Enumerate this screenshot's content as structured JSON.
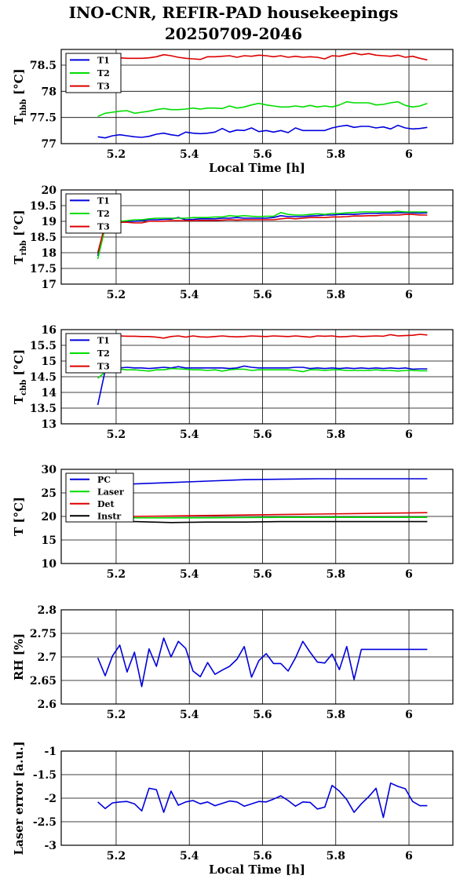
{
  "title_line1": "INO-CNR, REFIR-PAD housekeepings",
  "title_line2": "20250709-2046",
  "colors": {
    "blue": "#0000dd",
    "green": "#00dd00",
    "red": "#dd0000",
    "black": "#000000"
  },
  "chart_data": [
    {
      "type": "line",
      "ylabel": {
        "main": "T",
        "sub": "hbb",
        "unit": " [°C]"
      },
      "xlabel": "Local Time [h]",
      "xlim": [
        5.05,
        6.12
      ],
      "ylim": [
        77,
        78.8
      ],
      "yticks": [
        77,
        77.5,
        78,
        78.5
      ],
      "ytick_labels": [
        "77",
        "77.5",
        "78",
        "78.5"
      ],
      "xticks": [
        5.2,
        5.4,
        5.6,
        5.8,
        6
      ],
      "xtick_labels": [
        "5.2",
        "5.4",
        "5.6",
        "5.8",
        "6"
      ],
      "grid": true,
      "legend": "top-left",
      "x": [
        5.15,
        5.17,
        5.19,
        5.21,
        5.23,
        5.25,
        5.27,
        5.29,
        5.31,
        5.33,
        5.35,
        5.37,
        5.39,
        5.41,
        5.43,
        5.45,
        5.47,
        5.49,
        5.51,
        5.53,
        5.55,
        5.57,
        5.59,
        5.61,
        5.63,
        5.65,
        5.67,
        5.69,
        5.71,
        5.73,
        5.75,
        5.77,
        5.79,
        5.81,
        5.83,
        5.85,
        5.87,
        5.89,
        5.91,
        5.93,
        5.95,
        5.97,
        5.99,
        6.01,
        6.03,
        6.05
      ],
      "series": [
        {
          "name": "T1",
          "color": "#0000dd",
          "values": [
            77.13,
            77.11,
            77.15,
            77.17,
            77.15,
            77.13,
            77.12,
            77.14,
            77.18,
            77.2,
            77.17,
            77.15,
            77.22,
            77.2,
            77.19,
            77.2,
            77.22,
            77.29,
            77.22,
            77.26,
            77.25,
            77.3,
            77.23,
            77.25,
            77.22,
            77.25,
            77.21,
            77.3,
            77.25,
            77.25,
            77.25,
            77.25,
            77.3,
            77.33,
            77.35,
            77.31,
            77.33,
            77.33,
            77.3,
            77.32,
            77.28,
            77.35,
            77.3,
            77.28,
            77.29,
            77.31
          ]
        },
        {
          "name": "T2",
          "color": "#00dd00",
          "values": [
            77.52,
            77.58,
            77.6,
            77.62,
            77.63,
            77.58,
            77.6,
            77.62,
            77.65,
            77.67,
            77.65,
            77.65,
            77.66,
            77.68,
            77.66,
            77.68,
            77.68,
            77.67,
            77.72,
            77.68,
            77.7,
            77.74,
            77.77,
            77.74,
            77.72,
            77.7,
            77.7,
            77.72,
            77.7,
            77.73,
            77.7,
            77.72,
            77.7,
            77.74,
            77.8,
            77.78,
            77.78,
            77.78,
            77.74,
            77.75,
            77.78,
            77.8,
            77.73,
            77.7,
            77.72,
            77.77
          ]
        },
        {
          "name": "T3",
          "color": "#dd0000",
          "values": [
            78.6,
            78.62,
            78.63,
            78.64,
            78.63,
            78.63,
            78.63,
            78.64,
            78.66,
            78.7,
            78.68,
            78.65,
            78.63,
            78.62,
            78.61,
            78.66,
            78.66,
            78.67,
            78.68,
            78.65,
            78.68,
            78.67,
            78.69,
            78.68,
            78.66,
            78.68,
            78.65,
            78.67,
            78.65,
            78.66,
            78.65,
            78.62,
            78.68,
            78.67,
            78.7,
            78.73,
            78.7,
            78.72,
            78.69,
            78.68,
            78.67,
            78.69,
            78.65,
            78.67,
            78.63,
            78.6
          ]
        }
      ]
    },
    {
      "type": "line",
      "ylabel": {
        "main": "T",
        "sub": "rbb",
        "unit": " [°C]"
      },
      "xlabel": "",
      "xlim": [
        5.05,
        6.12
      ],
      "ylim": [
        17,
        20
      ],
      "yticks": [
        17,
        17.5,
        18,
        18.5,
        19,
        19.5,
        20
      ],
      "ytick_labels": [
        "17",
        "17.5",
        "18",
        "18.5",
        "19",
        "19.5",
        "20"
      ],
      "xticks": [
        5.2,
        5.4,
        5.6,
        5.8,
        6
      ],
      "xtick_labels": [
        "5.2",
        "5.4",
        "5.6",
        "5.8",
        "6"
      ],
      "grid": true,
      "legend": "top-left",
      "x": [
        5.15,
        5.17,
        5.19,
        5.21,
        5.23,
        5.25,
        5.27,
        5.29,
        5.31,
        5.33,
        5.35,
        5.37,
        5.39,
        5.41,
        5.43,
        5.45,
        5.47,
        5.49,
        5.51,
        5.53,
        5.55,
        5.57,
        5.59,
        5.61,
        5.63,
        5.65,
        5.67,
        5.69,
        5.71,
        5.73,
        5.75,
        5.77,
        5.79,
        5.81,
        5.83,
        5.85,
        5.87,
        5.89,
        5.91,
        5.93,
        5.95,
        5.97,
        5.99,
        6.01,
        6.03,
        6.05
      ],
      "series": [
        {
          "name": "T1",
          "color": "#0000dd",
          "values": [
            17.9,
            18.9,
            19.0,
            19.0,
            19.0,
            19.0,
            19.02,
            19.05,
            19.05,
            19.06,
            19.07,
            19.12,
            19.05,
            19.06,
            19.08,
            19.08,
            19.08,
            19.1,
            19.1,
            19.12,
            19.1,
            19.1,
            19.1,
            19.1,
            19.12,
            19.18,
            19.15,
            19.15,
            19.15,
            19.17,
            19.18,
            19.2,
            19.2,
            19.22,
            19.22,
            19.22,
            19.24,
            19.25,
            19.25,
            19.26,
            19.26,
            19.27,
            19.28,
            19.27,
            19.26,
            19.27
          ]
        },
        {
          "name": "T2",
          "color": "#00dd00",
          "values": [
            17.8,
            18.8,
            18.95,
            19.0,
            19.02,
            19.05,
            19.05,
            19.08,
            19.1,
            19.1,
            19.1,
            19.1,
            19.1,
            19.12,
            19.12,
            19.12,
            19.14,
            19.14,
            19.18,
            19.16,
            19.18,
            19.16,
            19.15,
            19.16,
            19.16,
            19.28,
            19.22,
            19.2,
            19.2,
            19.22,
            19.24,
            19.22,
            19.25,
            19.25,
            19.27,
            19.28,
            19.3,
            19.3,
            19.3,
            19.3,
            19.3,
            19.32,
            19.3,
            19.3,
            19.3,
            19.3
          ]
        },
        {
          "name": "T3",
          "color": "#dd0000",
          "values": [
            18.0,
            18.9,
            18.95,
            18.97,
            18.97,
            18.95,
            18.95,
            19.0,
            19.0,
            19.0,
            19.02,
            19.02,
            19.02,
            19.02,
            19.03,
            19.03,
            19.03,
            19.04,
            19.05,
            19.04,
            19.05,
            19.05,
            19.05,
            19.05,
            19.05,
            19.08,
            19.1,
            19.08,
            19.1,
            19.12,
            19.12,
            19.12,
            19.14,
            19.14,
            19.15,
            19.17,
            19.17,
            19.18,
            19.18,
            19.2,
            19.2,
            19.2,
            19.22,
            19.22,
            19.2,
            19.2
          ]
        }
      ]
    },
    {
      "type": "line",
      "ylabel": {
        "main": "T",
        "sub": "cbb",
        "unit": " [°C]"
      },
      "xlabel": "",
      "xlim": [
        5.05,
        6.12
      ],
      "ylim": [
        13,
        16
      ],
      "yticks": [
        13,
        13.5,
        14,
        14.5,
        15,
        15.5,
        16
      ],
      "ytick_labels": [
        "13",
        "13.5",
        "14",
        "14.5",
        "15",
        "15.5",
        "16"
      ],
      "xticks": [
        5.2,
        5.4,
        5.6,
        5.8,
        6
      ],
      "xtick_labels": [
        "5.2",
        "5.4",
        "5.6",
        "5.8",
        "6"
      ],
      "grid": true,
      "legend": "top-left",
      "x": [
        5.15,
        5.17,
        5.19,
        5.21,
        5.23,
        5.25,
        5.27,
        5.29,
        5.31,
        5.33,
        5.35,
        5.37,
        5.39,
        5.41,
        5.43,
        5.45,
        5.47,
        5.49,
        5.51,
        5.53,
        5.55,
        5.57,
        5.59,
        5.61,
        5.63,
        5.65,
        5.67,
        5.69,
        5.71,
        5.73,
        5.75,
        5.77,
        5.79,
        5.81,
        5.83,
        5.85,
        5.87,
        5.89,
        5.91,
        5.93,
        5.95,
        5.97,
        5.99,
        6.01,
        6.03,
        6.05
      ],
      "series": [
        {
          "name": "T1",
          "color": "#0000dd",
          "values": [
            13.6,
            14.7,
            14.78,
            14.78,
            14.8,
            14.78,
            14.78,
            14.76,
            14.78,
            14.8,
            14.78,
            14.82,
            14.78,
            14.78,
            14.78,
            14.78,
            14.78,
            14.78,
            14.76,
            14.78,
            14.84,
            14.8,
            14.78,
            14.78,
            14.78,
            14.78,
            14.78,
            14.8,
            14.8,
            14.76,
            14.78,
            14.76,
            14.78,
            14.76,
            14.78,
            14.76,
            14.78,
            14.76,
            14.78,
            14.76,
            14.78,
            14.76,
            14.78,
            14.74,
            14.75,
            14.75
          ]
        },
        {
          "name": "T2",
          "color": "#00dd00",
          "values": [
            14.45,
            14.65,
            14.72,
            14.74,
            14.72,
            14.72,
            14.7,
            14.68,
            14.72,
            14.72,
            14.76,
            14.75,
            14.74,
            14.72,
            14.72,
            14.7,
            14.72,
            14.68,
            14.72,
            14.74,
            14.74,
            14.7,
            14.72,
            14.72,
            14.72,
            14.72,
            14.72,
            14.7,
            14.66,
            14.72,
            14.72,
            14.7,
            14.72,
            14.72,
            14.7,
            14.7,
            14.7,
            14.7,
            14.72,
            14.7,
            14.7,
            14.68,
            14.7,
            14.7,
            14.69,
            14.69
          ]
        },
        {
          "name": "T3",
          "color": "#dd0000",
          "values": [
            15.75,
            15.78,
            15.8,
            15.8,
            15.79,
            15.79,
            15.78,
            15.78,
            15.76,
            15.73,
            15.78,
            15.8,
            15.76,
            15.8,
            15.77,
            15.76,
            15.78,
            15.8,
            15.78,
            15.77,
            15.78,
            15.8,
            15.79,
            15.78,
            15.8,
            15.79,
            15.78,
            15.8,
            15.78,
            15.76,
            15.8,
            15.79,
            15.8,
            15.77,
            15.78,
            15.8,
            15.78,
            15.79,
            15.8,
            15.79,
            15.84,
            15.8,
            15.81,
            15.82,
            15.85,
            15.83
          ]
        }
      ]
    },
    {
      "type": "line",
      "ylabel": {
        "main": "T",
        "sub": "",
        "unit": " [°C]"
      },
      "xlabel": "",
      "xlim": [
        5.05,
        6.12
      ],
      "ylim": [
        10,
        30
      ],
      "yticks": [
        10,
        15,
        20,
        25,
        30
      ],
      "ytick_labels": [
        "10",
        "15",
        "20",
        "25",
        "30"
      ],
      "xticks": [
        5.2,
        5.4,
        5.6,
        5.8,
        6
      ],
      "xtick_labels": [
        "5.2",
        "5.4",
        "5.6",
        "5.8",
        "6"
      ],
      "grid": true,
      "legend": "top-left",
      "x": [
        5.15,
        5.25,
        5.35,
        5.45,
        5.55,
        5.65,
        5.75,
        5.85,
        5.95,
        6.05
      ],
      "series": [
        {
          "name": "PC",
          "color": "#0000dd",
          "values": [
            26.5,
            26.9,
            27.2,
            27.5,
            27.8,
            27.9,
            28.0,
            28.0,
            28.0,
            28.0
          ]
        },
        {
          "name": "Laser",
          "color": "#00dd00",
          "values": [
            19.6,
            19.7,
            19.7,
            19.7,
            19.75,
            19.8,
            19.8,
            19.8,
            19.8,
            19.8
          ]
        },
        {
          "name": "Det",
          "color": "#dd0000",
          "values": [
            19.9,
            20.0,
            20.1,
            20.2,
            20.3,
            20.4,
            20.5,
            20.6,
            20.7,
            20.8
          ]
        },
        {
          "name": "Instr",
          "color": "#000000",
          "values": [
            18.9,
            18.9,
            18.7,
            18.8,
            18.8,
            18.9,
            18.9,
            18.9,
            18.9,
            18.9
          ]
        }
      ]
    },
    {
      "type": "line",
      "ylabel": {
        "main": "RH [%]",
        "sub": "",
        "unit": ""
      },
      "xlabel": "",
      "xlim": [
        5.05,
        6.12
      ],
      "ylim": [
        2.6,
        2.8
      ],
      "yticks": [
        2.6,
        2.65,
        2.7,
        2.75,
        2.8
      ],
      "ytick_labels": [
        "2.6",
        "2.65",
        "2.7",
        "2.75",
        "2.8"
      ],
      "xticks": [
        5.2,
        5.4,
        5.6,
        5.8,
        6
      ],
      "xtick_labels": [
        "5.2",
        "5.4",
        "5.6",
        "5.8",
        "6"
      ],
      "grid": true,
      "legend": "none",
      "x": [
        5.15,
        5.17,
        5.19,
        5.21,
        5.23,
        5.25,
        5.27,
        5.29,
        5.31,
        5.33,
        5.35,
        5.37,
        5.39,
        5.41,
        5.43,
        5.45,
        5.47,
        5.49,
        5.51,
        5.53,
        5.55,
        5.57,
        5.59,
        5.61,
        5.63,
        5.65,
        5.67,
        5.69,
        5.71,
        5.73,
        5.75,
        5.77,
        5.79,
        5.81,
        5.83,
        5.85,
        5.87,
        5.89,
        5.91,
        5.93,
        5.95,
        5.97,
        5.99,
        6.01,
        6.03,
        6.05
      ],
      "series": [
        {
          "name": "",
          "color": "#0000dd",
          "values": [
            2.698,
            2.66,
            2.702,
            2.725,
            2.668,
            2.71,
            2.637,
            2.717,
            2.68,
            2.74,
            2.7,
            2.733,
            2.718,
            2.67,
            2.658,
            2.688,
            2.663,
            2.672,
            2.68,
            2.695,
            2.722,
            2.657,
            2.692,
            2.707,
            2.686,
            2.686,
            2.67,
            2.698,
            2.733,
            2.71,
            2.689,
            2.687,
            2.706,
            2.673,
            2.722,
            2.652,
            2.716,
            2.716,
            2.716,
            2.716,
            2.716,
            2.716,
            2.716,
            2.716,
            2.716,
            2.716
          ]
        }
      ]
    },
    {
      "type": "line",
      "ylabel": {
        "main": "Laser error [a.u.]",
        "sub": "",
        "unit": ""
      },
      "xlabel": "Local Time [h]",
      "xlim": [
        5.05,
        6.12
      ],
      "ylim": [
        -3,
        -1
      ],
      "yticks": [
        -3,
        -2.5,
        -2,
        -1.5,
        -1
      ],
      "ytick_labels": [
        "-3",
        "-2.5",
        "-2",
        "-1.5",
        "-1"
      ],
      "xticks": [
        5.2,
        5.4,
        5.6,
        5.8,
        6
      ],
      "xtick_labels": [
        "5.2",
        "5.4",
        "5.6",
        "5.8",
        "6"
      ],
      "grid": true,
      "legend": "none",
      "x": [
        5.15,
        5.17,
        5.19,
        5.21,
        5.23,
        5.25,
        5.27,
        5.29,
        5.31,
        5.33,
        5.35,
        5.37,
        5.39,
        5.41,
        5.43,
        5.45,
        5.47,
        5.49,
        5.51,
        5.53,
        5.55,
        5.57,
        5.59,
        5.61,
        5.63,
        5.65,
        5.67,
        5.69,
        5.71,
        5.73,
        5.75,
        5.77,
        5.79,
        5.81,
        5.83,
        5.85,
        5.87,
        5.89,
        5.91,
        5.93,
        5.95,
        5.97,
        5.99,
        6.01,
        6.03,
        6.05
      ],
      "series": [
        {
          "name": "",
          "color": "#0000dd",
          "values": [
            -2.08,
            -2.22,
            -2.1,
            -2.08,
            -2.07,
            -2.12,
            -2.27,
            -1.79,
            -1.82,
            -2.3,
            -1.85,
            -2.15,
            -2.08,
            -2.05,
            -2.12,
            -2.08,
            -2.16,
            -2.11,
            -2.06,
            -2.08,
            -2.17,
            -2.12,
            -2.07,
            -2.08,
            -2.02,
            -1.95,
            -2.05,
            -2.17,
            -2.08,
            -2.09,
            -2.23,
            -2.19,
            -1.73,
            -1.85,
            -2.03,
            -2.3,
            -2.12,
            -1.97,
            -1.79,
            -2.41,
            -1.68,
            -1.75,
            -1.8,
            -2.07,
            -2.16,
            -2.16
          ]
        }
      ]
    }
  ]
}
